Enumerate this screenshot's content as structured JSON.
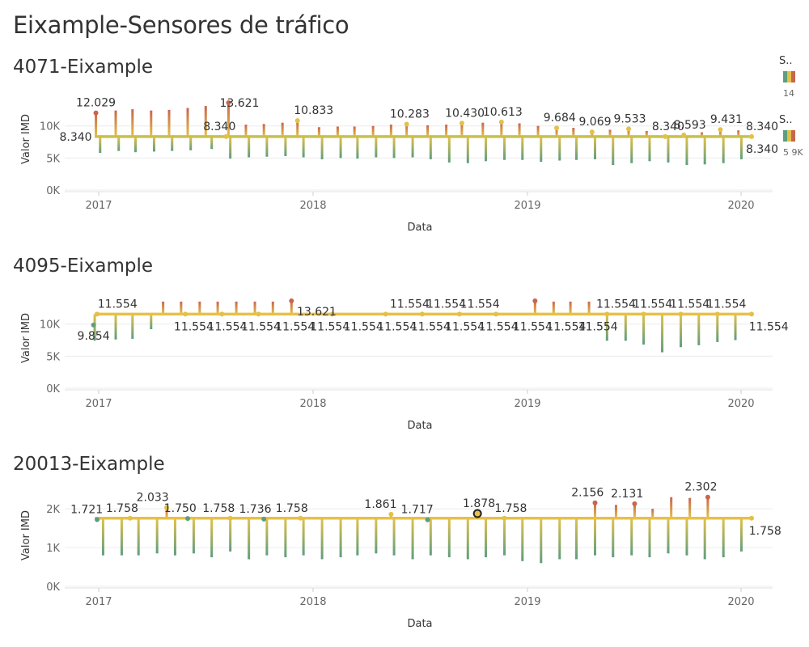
{
  "dashboard": {
    "title": "Eixample-Sensores de tráfico"
  },
  "legend": {
    "label_1": "S..",
    "label_2": "S..",
    "vals_1": "14",
    "vals_2": "5 9K"
  },
  "colors": {
    "line_main": "#e8c047",
    "line_main_first": "#c9c04c",
    "low": "#5e9e7e",
    "mid": "#e3c149",
    "high": "#c8664e",
    "grid": "#ececec"
  },
  "chart_data": [
    {
      "type": "line",
      "title": "4071-Eixample",
      "xlabel": "Data",
      "ylabel": "Valor IMD",
      "x_ticks": [
        "2017",
        "2018",
        "2019",
        "2020"
      ],
      "y_ticks": [
        "0K",
        "5K",
        "10K"
      ],
      "ylim": [
        0,
        14500
      ],
      "xlim": [
        "2016-11-12",
        "2020-02-05"
      ],
      "baseline": 8340,
      "dips": [
        [
          "2017-01-10",
          5800
        ],
        [
          "2017-02-10",
          6100
        ],
        [
          "2017-03-10",
          5900
        ],
        [
          "2017-04-10",
          6000
        ],
        [
          "2017-05-10",
          6100
        ],
        [
          "2017-06-10",
          6200
        ],
        [
          "2017-07-15",
          6400
        ],
        [
          "2017-08-15",
          4900
        ],
        [
          "2017-09-15",
          5100
        ],
        [
          "2017-10-15",
          5200
        ],
        [
          "2017-11-15",
          5300
        ],
        [
          "2017-12-15",
          5100
        ],
        [
          "2018-01-15",
          4800
        ],
        [
          "2018-02-15",
          5000
        ],
        [
          "2018-03-15",
          4900
        ],
        [
          "2018-04-15",
          5100
        ],
        [
          "2018-05-15",
          5000
        ],
        [
          "2018-06-15",
          5100
        ],
        [
          "2018-07-15",
          4800
        ],
        [
          "2018-08-15",
          4300
        ],
        [
          "2018-09-15",
          4200
        ],
        [
          "2018-10-15",
          4500
        ],
        [
          "2018-11-15",
          4700
        ],
        [
          "2018-12-15",
          4700
        ],
        [
          "2019-01-15",
          4400
        ],
        [
          "2019-02-15",
          4600
        ],
        [
          "2019-03-15",
          4700
        ],
        [
          "2019-04-15",
          4800
        ],
        [
          "2019-05-15",
          3900
        ],
        [
          "2019-06-15",
          4200
        ],
        [
          "2019-07-15",
          4500
        ],
        [
          "2019-08-15",
          4300
        ],
        [
          "2019-09-15",
          3900
        ],
        [
          "2019-10-15",
          4000
        ],
        [
          "2019-11-15",
          4200
        ],
        [
          "2019-12-15",
          4800
        ]
      ],
      "peaks": [
        [
          "2017-01-03",
          12029
        ],
        [
          "2017-02-05",
          12400
        ],
        [
          "2017-03-05",
          12600
        ],
        [
          "2017-04-05",
          12400
        ],
        [
          "2017-05-05",
          12500
        ],
        [
          "2017-06-05",
          12800
        ],
        [
          "2017-07-05",
          13100
        ],
        [
          "2017-08-12",
          13621
        ],
        [
          "2017-09-10",
          10200
        ],
        [
          "2017-10-10",
          10300
        ],
        [
          "2017-11-10",
          10500
        ],
        [
          "2017-12-05",
          10833
        ],
        [
          "2018-01-10",
          9800
        ],
        [
          "2018-02-10",
          9900
        ],
        [
          "2018-03-10",
          9900
        ],
        [
          "2018-04-10",
          10000
        ],
        [
          "2018-05-10",
          10200
        ],
        [
          "2018-06-05",
          10283
        ],
        [
          "2018-07-10",
          10100
        ],
        [
          "2018-08-10",
          10200
        ],
        [
          "2018-09-05",
          10430
        ],
        [
          "2018-10-10",
          10500
        ],
        [
          "2018-11-10",
          10613
        ],
        [
          "2018-12-10",
          10400
        ],
        [
          "2019-01-10",
          10000
        ],
        [
          "2019-02-10",
          9684
        ],
        [
          "2019-03-10",
          9700
        ],
        [
          "2019-04-10",
          9069
        ],
        [
          "2019-05-10",
          9400
        ],
        [
          "2019-06-10",
          9533
        ],
        [
          "2019-07-10",
          9200
        ],
        [
          "2019-08-10",
          8340
        ],
        [
          "2019-09-10",
          8593
        ],
        [
          "2019-10-10",
          9000
        ],
        [
          "2019-11-10",
          9431
        ],
        [
          "2019-12-10",
          9300
        ]
      ],
      "dots": [
        [
          "2017-01-03",
          12029
        ],
        [
          "2017-08-08",
          8340
        ],
        [
          "2017-08-12",
          13621
        ],
        [
          "2017-12-05",
          10833
        ],
        [
          "2018-06-05",
          10283
        ],
        [
          "2018-09-05",
          10430
        ],
        [
          "2018-11-10",
          10613
        ],
        [
          "2019-02-10",
          9684
        ],
        [
          "2019-04-10",
          9069
        ],
        [
          "2019-06-10",
          9533
        ],
        [
          "2019-08-10",
          8340
        ],
        [
          "2019-09-10",
          8593
        ],
        [
          "2019-11-10",
          9431
        ],
        [
          "2020-01-01",
          8340
        ]
      ],
      "labels": [
        {
          "date": "2016-12-30",
          "value": 8340,
          "text": "8.340",
          "pos": "left"
        },
        {
          "date": "2017-01-03",
          "value": 12029,
          "text": "12.029",
          "pos": "above"
        },
        {
          "date": "2017-07-28",
          "value": 8340,
          "text": "8.340",
          "pos": "above"
        },
        {
          "date": "2017-10-05",
          "value": 13621,
          "text": "13.621",
          "pos": "left"
        },
        {
          "date": "2018-01-01",
          "value": 10833,
          "text": "10.833",
          "pos": "above"
        },
        {
          "date": "2018-06-10",
          "value": 10283,
          "text": "10.283",
          "pos": "above"
        },
        {
          "date": "2018-09-10",
          "value": 10430,
          "text": "10.430",
          "pos": "above"
        },
        {
          "date": "2018-11-12",
          "value": 10613,
          "text": "10.613",
          "pos": "above"
        },
        {
          "date": "2019-02-15",
          "value": 9684,
          "text": "9.684",
          "pos": "above"
        },
        {
          "date": "2019-04-15",
          "value": 9069,
          "text": "9.069",
          "pos": "above"
        },
        {
          "date": "2019-06-12",
          "value": 9533,
          "text": "9.533",
          "pos": "above"
        },
        {
          "date": "2019-08-15",
          "value": 8340,
          "text": "8.340",
          "pos": "above"
        },
        {
          "date": "2019-09-20",
          "value": 8593,
          "text": "8.593",
          "pos": "above"
        },
        {
          "date": "2019-11-20",
          "value": 9431,
          "text": "9.431",
          "pos": "above"
        },
        {
          "date": "2020-01-05",
          "value": 8340,
          "text": "8.340",
          "pos": "upright"
        },
        {
          "date": "2020-01-05",
          "value": 8340,
          "text": "8.340",
          "pos": "downright"
        }
      ]
    },
    {
      "type": "line",
      "title": "4095-Eixample",
      "xlabel": "Data",
      "ylabel": "Valor IMD",
      "x_ticks": [
        "2017",
        "2018",
        "2019",
        "2020"
      ],
      "y_ticks": [
        "0K",
        "5K",
        "10K"
      ],
      "ylim": [
        0,
        14500
      ],
      "xlim": [
        "2016-11-12",
        "2020-02-05"
      ],
      "baseline": 11554,
      "dips": [
        [
          "2017-01-01",
          7400
        ],
        [
          "2017-02-05",
          7600
        ],
        [
          "2017-03-05",
          7700
        ],
        [
          "2017-04-05",
          9200
        ],
        [
          "2019-05-05",
          7400
        ],
        [
          "2019-06-05",
          7400
        ],
        [
          "2019-07-05",
          6800
        ],
        [
          "2019-08-05",
          5600
        ],
        [
          "2019-09-05",
          6400
        ],
        [
          "2019-10-05",
          6700
        ],
        [
          "2019-11-05",
          7200
        ],
        [
          "2019-12-05",
          7500
        ]
      ],
      "peaks": [
        [
          "2017-04-25",
          13500
        ],
        [
          "2017-05-25",
          13500
        ],
        [
          "2017-06-25",
          13500
        ],
        [
          "2017-07-25",
          13500
        ],
        [
          "2017-08-25",
          13500
        ],
        [
          "2017-09-25",
          13500
        ],
        [
          "2017-10-25",
          13500
        ],
        [
          "2017-11-25",
          13621
        ],
        [
          "2019-01-05",
          13621
        ],
        [
          "2019-02-05",
          13500
        ],
        [
          "2019-03-05",
          13500
        ],
        [
          "2019-04-05",
          13500
        ]
      ],
      "dots": [
        [
          "2016-12-30",
          9854
        ],
        [
          "2017-01-05",
          11554
        ],
        [
          "2017-06-01",
          11554
        ],
        [
          "2017-08-01",
          11554
        ],
        [
          "2017-10-01",
          11554
        ],
        [
          "2017-11-25",
          13621
        ],
        [
          "2018-02-01",
          11554
        ],
        [
          "2018-05-01",
          11554
        ],
        [
          "2018-07-01",
          11554
        ],
        [
          "2018-09-01",
          11554
        ],
        [
          "2018-11-01",
          11554
        ],
        [
          "2019-01-05",
          13621
        ],
        [
          "2019-05-05",
          11554
        ],
        [
          "2019-07-05",
          11554
        ],
        [
          "2019-09-05",
          11554
        ],
        [
          "2019-11-05",
          11554
        ],
        [
          "2020-01-01",
          11554
        ]
      ],
      "labels": [
        {
          "date": "2016-12-30",
          "value": 9854,
          "text": "9.854",
          "pos": "below"
        },
        {
          "date": "2017-02-08",
          "value": 11554,
          "text": "11.554",
          "pos": "above"
        },
        {
          "date": "2018-01-06",
          "value": 13621,
          "text": "13.621",
          "pos": "below"
        },
        {
          "date": "2018-09-05",
          "value": 11554,
          "text": "11.554",
          "pos": "aboveseq"
        },
        {
          "date": "2019-06-10",
          "value": 11554,
          "text": "11.554",
          "pos": "aboveseq2"
        },
        {
          "date": "2018-02-01",
          "value": 11554,
          "text": "11.554",
          "pos": "belowseq"
        },
        {
          "date": "2020-01-10",
          "value": 11554,
          "text": "11.554",
          "pos": "downright"
        }
      ]
    },
    {
      "type": "line",
      "title": "20013-Eixample",
      "xlabel": "Data",
      "ylabel": "Valor IMD",
      "x_ticks": [
        "2017",
        "2018",
        "2019",
        "2020"
      ],
      "y_ticks": [
        "0K",
        "1K",
        "2K"
      ],
      "ylim": [
        0,
        2400
      ],
      "xlim": [
        "2016-11-12",
        "2020-02-05"
      ],
      "baseline": 1758,
      "dips": [
        [
          "2017-01-15",
          800
        ],
        [
          "2017-02-15",
          800
        ],
        [
          "2017-03-15",
          800
        ],
        [
          "2017-04-15",
          850
        ],
        [
          "2017-05-15",
          800
        ],
        [
          "2017-06-15",
          850
        ],
        [
          "2017-07-15",
          750
        ],
        [
          "2017-08-15",
          900
        ],
        [
          "2017-09-15",
          700
        ],
        [
          "2017-10-15",
          800
        ],
        [
          "2017-11-15",
          750
        ],
        [
          "2017-12-15",
          800
        ],
        [
          "2018-01-15",
          700
        ],
        [
          "2018-02-15",
          750
        ],
        [
          "2018-03-15",
          800
        ],
        [
          "2018-04-15",
          850
        ],
        [
          "2018-05-15",
          800
        ],
        [
          "2018-06-15",
          700
        ],
        [
          "2018-07-15",
          800
        ],
        [
          "2018-08-15",
          750
        ],
        [
          "2018-09-15",
          700
        ],
        [
          "2018-10-15",
          750
        ],
        [
          "2018-11-15",
          800
        ],
        [
          "2018-12-15",
          650
        ],
        [
          "2019-01-15",
          600
        ],
        [
          "2019-02-15",
          700
        ],
        [
          "2019-03-15",
          700
        ],
        [
          "2019-04-15",
          800
        ],
        [
          "2019-05-15",
          750
        ],
        [
          "2019-06-15",
          800
        ],
        [
          "2019-07-15",
          750
        ],
        [
          "2019-08-15",
          850
        ],
        [
          "2019-09-15",
          800
        ],
        [
          "2019-10-15",
          700
        ],
        [
          "2019-11-15",
          750
        ],
        [
          "2019-12-15",
          900
        ]
      ],
      "peaks": [
        [
          "2017-01-05",
          1721
        ],
        [
          "2017-03-01",
          1758
        ],
        [
          "2017-05-01",
          2033
        ],
        [
          "2017-06-05",
          1750
        ],
        [
          "2017-08-15",
          1758
        ],
        [
          "2017-10-10",
          1736
        ],
        [
          "2017-12-10",
          1758
        ],
        [
          "2018-05-10",
          1861
        ],
        [
          "2018-07-10",
          1717
        ],
        [
          "2019-04-15",
          2156
        ],
        [
          "2019-05-20",
          2100
        ],
        [
          "2019-06-20",
          2131
        ],
        [
          "2019-07-20",
          2000
        ],
        [
          "2019-08-20",
          2300
        ],
        [
          "2019-09-20",
          2280
        ],
        [
          "2019-10-20",
          2302
        ]
      ],
      "dots": [
        [
          "2017-01-05",
          1721
        ],
        [
          "2017-03-01",
          1758
        ],
        [
          "2017-05-01",
          2033
        ],
        [
          "2017-06-05",
          1750
        ],
        [
          "2017-08-15",
          1758
        ],
        [
          "2017-10-10",
          1736
        ],
        [
          "2017-12-10",
          1758
        ],
        [
          "2018-05-10",
          1861
        ],
        [
          "2018-07-10",
          1717
        ],
        [
          "2018-10-01",
          1878
        ],
        [
          "2018-11-15",
          1758
        ],
        [
          "2019-04-15",
          2156
        ],
        [
          "2019-06-20",
          2131
        ],
        [
          "2019-10-20",
          2302
        ],
        [
          "2020-01-01",
          1758
        ]
      ],
      "labels": [
        {
          "date": "2017-01-20",
          "value": 1721,
          "text": "1.721",
          "pos": "left2"
        },
        {
          "date": "2017-03-20",
          "value": 1758,
          "text": "1.758",
          "pos": "left2"
        },
        {
          "date": "2017-05-10",
          "value": 2033,
          "text": "2.033",
          "pos": "left2"
        },
        {
          "date": "2017-06-25",
          "value": 1750,
          "text": "1.750",
          "pos": "left2"
        },
        {
          "date": "2017-08-28",
          "value": 1758,
          "text": "1.758",
          "pos": "left2"
        },
        {
          "date": "2017-10-28",
          "value": 1736,
          "text": "1.736",
          "pos": "left2"
        },
        {
          "date": "2017-12-28",
          "value": 1758,
          "text": "1.758",
          "pos": "left2"
        },
        {
          "date": "2018-05-25",
          "value": 1861,
          "text": "1.861",
          "pos": "left2"
        },
        {
          "date": "2018-07-25",
          "value": 1717,
          "text": "1.717",
          "pos": "left2"
        },
        {
          "date": "2018-11-05",
          "value": 1878,
          "text": "1.878",
          "pos": "left2"
        },
        {
          "date": "2018-12-28",
          "value": 1758,
          "text": "1.758",
          "pos": "left2"
        },
        {
          "date": "2019-05-05",
          "value": 2156,
          "text": "2.156",
          "pos": "left2"
        },
        {
          "date": "2019-07-10",
          "value": 2131,
          "text": "2.131",
          "pos": "left2"
        },
        {
          "date": "2019-11-10",
          "value": 2302,
          "text": "2.302",
          "pos": "left2"
        },
        {
          "date": "2020-01-10",
          "value": 1758,
          "text": "1.758",
          "pos": "downright"
        }
      ],
      "highlight": [
        "2018-10-01",
        1878
      ]
    }
  ]
}
